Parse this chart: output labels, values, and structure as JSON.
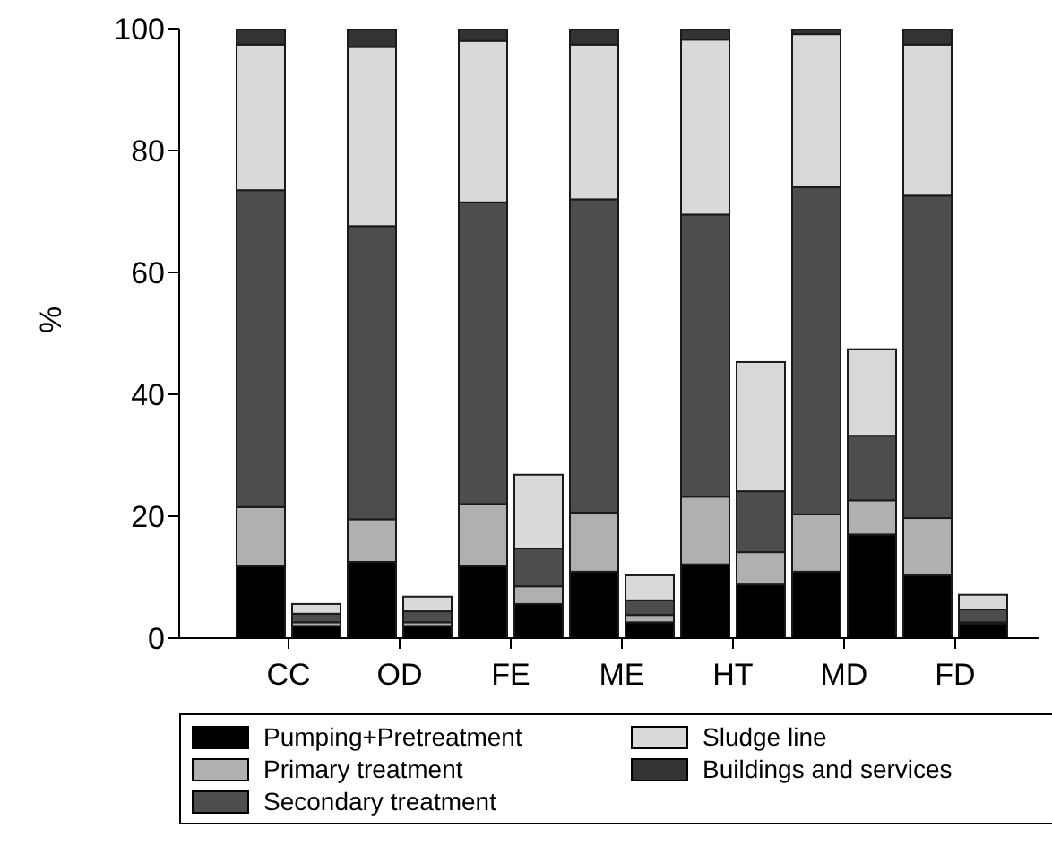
{
  "chart_data": {
    "type": "bar",
    "stacked": true,
    "ylabel": "%",
    "categories": [
      "CC",
      null,
      "OD",
      null,
      "FE",
      null,
      "ME",
      null,
      "HT",
      null,
      "MD",
      null,
      "FD",
      null
    ],
    "series": [
      {
        "name": "Pumping+Pretreatment",
        "color": "#000000",
        "values": [
          11.8,
          2,
          12.5,
          2,
          11.8,
          5.6,
          10.9,
          2.6,
          12.1,
          8.8,
          10.9,
          17,
          10.3,
          2.4
        ]
      },
      {
        "name": "Primary treatment",
        "color": "#b0b0b0",
        "values": [
          9.7,
          0.6,
          7,
          0.6,
          10.2,
          2.9,
          9.7,
          1.2,
          11.1,
          5.3,
          9.4,
          5.6,
          9.4,
          0.2
        ]
      },
      {
        "name": "Secondary treatment",
        "color": "#4d4d4d",
        "values": [
          52,
          1.4,
          48.1,
          1.8,
          49.5,
          6.2,
          51.4,
          2.4,
          46.3,
          10,
          53.7,
          10.6,
          52.9,
          2.1
        ]
      },
      {
        "name": "Sludge line",
        "color": "#d9d9d9",
        "values": [
          23.9,
          1.6,
          29.4,
          2.4,
          26.5,
          12.1,
          25.4,
          4.1,
          28.7,
          21.2,
          25.1,
          14.2,
          24.8,
          2.4
        ]
      },
      {
        "name": "Buildings and services",
        "color": "#333333",
        "values": [
          2.6,
          0,
          3,
          0,
          2,
          0,
          2.6,
          0,
          1.8,
          0,
          0.9,
          0,
          2.6,
          0
        ]
      }
    ],
    "ylim": [
      0,
      100
    ],
    "yticks": [
      0,
      20,
      40,
      60,
      80,
      100
    ],
    "legend": "bottom"
  }
}
